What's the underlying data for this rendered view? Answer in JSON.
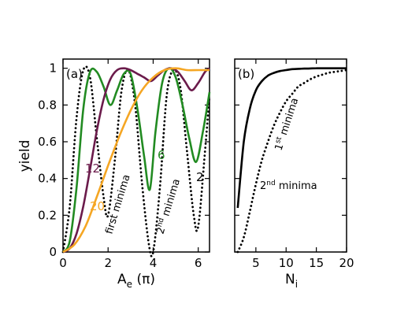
{
  "chart_data": [
    {
      "type": "line",
      "panel_label": "(a)",
      "xlabel_main": "A",
      "xlabel_sub": "e",
      "xlabel_rest": " (π)",
      "ylabel": "yield",
      "xlim": [
        0,
        6.5
      ],
      "ylim": [
        0,
        1.05
      ],
      "xticks": [
        0,
        2,
        4,
        6
      ],
      "yticks": [
        0,
        0.2,
        0.4,
        0.6,
        0.8,
        1
      ],
      "ytick_labels": [
        "0",
        "0.2",
        "0.4",
        "0.6",
        "0.8",
        "1"
      ],
      "series": [
        {
          "name": "2",
          "color": "#000000",
          "style": "dotted",
          "x": [
            0,
            0.3,
            0.6,
            0.9,
            1.2,
            1.5,
            1.8,
            2.0,
            2.3,
            2.6,
            2.9,
            3.2,
            3.5,
            3.8,
            4.0,
            4.3,
            4.6,
            4.9,
            5.2,
            5.5,
            5.8,
            6.0,
            6.3,
            6.5
          ],
          "y": [
            0,
            0.25,
            0.73,
            0.99,
            0.95,
            0.62,
            0.3,
            0.2,
            0.5,
            0.88,
            0.99,
            0.8,
            0.38,
            0.05,
            0.0,
            0.35,
            0.85,
            0.99,
            0.9,
            0.55,
            0.2,
            0.14,
            0.55,
            0.85
          ]
        },
        {
          "name": "6",
          "color": "#228B22",
          "style": "solid",
          "x": [
            0,
            0.3,
            0.6,
            0.9,
            1.2,
            1.5,
            1.8,
            2.1,
            2.4,
            2.7,
            3.0,
            3.3,
            3.6,
            3.85,
            4.1,
            4.4,
            4.7,
            5.0,
            5.3,
            5.6,
            5.9,
            6.2,
            6.5
          ],
          "y": [
            0,
            0.06,
            0.35,
            0.78,
            0.98,
            0.98,
            0.9,
            0.8,
            0.88,
            0.97,
            0.97,
            0.78,
            0.52,
            0.34,
            0.65,
            0.92,
            1.0,
            0.95,
            0.8,
            0.62,
            0.49,
            0.65,
            0.87
          ]
        },
        {
          "name": "12",
          "color": "#6B1B4B",
          "style": "solid",
          "x": [
            0,
            0.3,
            0.6,
            0.9,
            1.2,
            1.5,
            1.8,
            2.1,
            2.4,
            2.7,
            3.0,
            3.3,
            3.6,
            3.9,
            4.2,
            4.5,
            4.8,
            5.1,
            5.4,
            5.7,
            6.0,
            6.3,
            6.5
          ],
          "y": [
            0,
            0.02,
            0.1,
            0.25,
            0.45,
            0.66,
            0.83,
            0.94,
            0.99,
            1.0,
            0.99,
            0.97,
            0.95,
            0.93,
            0.96,
            0.99,
            1.0,
            0.98,
            0.93,
            0.88,
            0.92,
            0.98,
            1.0
          ]
        },
        {
          "name": "20",
          "color": "#F5A623",
          "style": "solid",
          "x": [
            0,
            0.5,
            1.0,
            1.5,
            2.0,
            2.5,
            3.0,
            3.5,
            4.0,
            4.5,
            5.0,
            5.5,
            6.0,
            6.5
          ],
          "y": [
            0,
            0.04,
            0.14,
            0.3,
            0.47,
            0.63,
            0.77,
            0.88,
            0.95,
            0.99,
            1.0,
            0.99,
            0.99,
            0.99
          ]
        }
      ],
      "annotations": [
        {
          "text": "2",
          "color": "#000000"
        },
        {
          "text": "6",
          "color": "#228B22"
        },
        {
          "text": "12",
          "color": "#6B1B4B"
        },
        {
          "text": "20",
          "color": "#F5A623"
        },
        {
          "text": "first minima",
          "color": "#000000"
        },
        {
          "text_main": "2",
          "text_sup": "nd",
          "text_rest": " minima",
          "color": "#000000"
        }
      ]
    },
    {
      "type": "line",
      "panel_label": "(b)",
      "xlabel_main": "N",
      "xlabel_sub": "i",
      "xlim": [
        1.5,
        20
      ],
      "ylim": [
        0,
        1.05
      ],
      "xticks": [
        5,
        10,
        15,
        20
      ],
      "yticks": [
        0,
        0.2,
        0.4,
        0.6,
        0.8,
        1
      ],
      "series": [
        {
          "name": "1st minima",
          "color": "#000000",
          "style": "solid",
          "x": [
            2,
            3,
            4,
            5,
            6,
            7,
            8,
            9,
            10,
            11,
            12,
            13,
            14,
            15,
            16,
            17,
            18,
            19,
            20
          ],
          "y": [
            0.24,
            0.6,
            0.78,
            0.88,
            0.93,
            0.96,
            0.975,
            0.985,
            0.99,
            0.995,
            0.997,
            0.998,
            0.999,
            1.0,
            1.0,
            1.0,
            1.0,
            1.0,
            1.0
          ]
        },
        {
          "name": "2nd minima",
          "color": "#000000",
          "style": "dotted",
          "x": [
            2,
            3,
            4,
            5,
            6,
            7,
            8,
            9,
            10,
            11,
            12,
            13,
            14,
            15,
            16,
            17,
            18,
            19,
            20
          ],
          "y": [
            0.0,
            0.08,
            0.22,
            0.37,
            0.5,
            0.6,
            0.69,
            0.76,
            0.82,
            0.86,
            0.9,
            0.92,
            0.94,
            0.955,
            0.965,
            0.975,
            0.98,
            0.985,
            0.99
          ]
        }
      ],
      "annotations": [
        {
          "text_main": "1",
          "text_sup": "st",
          "text_rest": " minima"
        },
        {
          "text_main": "2",
          "text_sup": "nd",
          "text_rest": " minima"
        }
      ]
    }
  ]
}
